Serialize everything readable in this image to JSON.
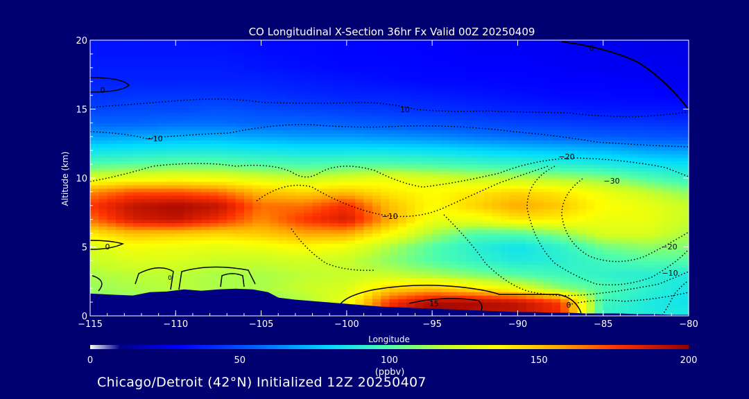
{
  "chart_data": {
    "type": "heatmap",
    "title": "CO Longitudinal X-Section 36hr  Fx Valid 00Z 20250409",
    "xlabel": "Longitude",
    "ylabel": "Altitude (km)",
    "xlim": [
      -115,
      -80
    ],
    "ylim": [
      0,
      20
    ],
    "x_ticks": [
      -115,
      -110,
      -105,
      -100,
      -95,
      -90,
      -85,
      -80
    ],
    "x_tick_labels": [
      "−115",
      "−110",
      "−105",
      "−100",
      "−95",
      "−90",
      "−85",
      "−80"
    ],
    "y_ticks": [
      0,
      5,
      10,
      15,
      20
    ],
    "x": [
      -115,
      -112.5,
      -110,
      -107.5,
      -105,
      -102.5,
      -100,
      -97.5,
      -95,
      -92.5,
      -90,
      -87.5,
      -85,
      -82.5,
      -80
    ],
    "y": [
      0,
      1,
      2,
      3,
      4,
      5,
      6,
      7,
      8,
      9,
      10,
      11,
      12,
      13,
      14,
      15,
      16,
      17,
      18,
      19,
      20
    ],
    "values": [
      [
        110,
        110,
        112,
        110,
        110,
        120,
        130,
        185,
        200,
        190,
        190,
        180,
        90,
        85,
        85
      ],
      [
        110,
        110,
        112,
        110,
        110,
        115,
        130,
        175,
        195,
        195,
        190,
        175,
        95,
        85,
        80
      ],
      [
        112,
        115,
        118,
        115,
        115,
        120,
        125,
        145,
        150,
        140,
        130,
        110,
        100,
        90,
        82
      ],
      [
        115,
        118,
        118,
        115,
        115,
        118,
        120,
        120,
        115,
        108,
        100,
        95,
        90,
        88,
        85
      ],
      [
        120,
        125,
        125,
        120,
        120,
        122,
        120,
        110,
        100,
        92,
        85,
        88,
        95,
        100,
        100
      ],
      [
        125,
        132,
        130,
        128,
        130,
        135,
        130,
        115,
        100,
        88,
        80,
        90,
        105,
        110,
        108
      ],
      [
        140,
        150,
        148,
        145,
        148,
        155,
        155,
        135,
        115,
        100,
        100,
        110,
        125,
        125,
        115
      ],
      [
        165,
        185,
        190,
        178,
        160,
        175,
        185,
        155,
        130,
        130,
        140,
        138,
        130,
        130,
        120
      ],
      [
        175,
        190,
        195,
        190,
        165,
        165,
        178,
        150,
        135,
        145,
        155,
        148,
        135,
        130,
        120
      ],
      [
        160,
        170,
        170,
        165,
        150,
        145,
        150,
        140,
        135,
        140,
        145,
        140,
        130,
        120,
        110
      ],
      [
        125,
        130,
        132,
        130,
        125,
        120,
        125,
        130,
        125,
        120,
        118,
        115,
        110,
        100,
        92
      ],
      [
        100,
        102,
        104,
        104,
        100,
        98,
        100,
        100,
        98,
        95,
        92,
        88,
        85,
        80,
        78
      ],
      [
        80,
        82,
        84,
        84,
        82,
        80,
        80,
        80,
        78,
        75,
        72,
        70,
        68,
        64,
        62
      ],
      [
        62,
        64,
        66,
        66,
        64,
        62,
        62,
        60,
        58,
        55,
        52,
        50,
        48,
        46,
        45
      ],
      [
        50,
        50,
        52,
        52,
        50,
        50,
        48,
        46,
        44,
        42,
        40,
        38,
        36,
        36,
        34
      ],
      [
        40,
        42,
        42,
        44,
        42,
        40,
        38,
        36,
        34,
        32,
        30,
        28,
        26,
        26,
        25
      ],
      [
        34,
        36,
        36,
        36,
        34,
        32,
        30,
        30,
        28,
        26,
        24,
        22,
        22,
        21,
        20
      ],
      [
        30,
        30,
        30,
        30,
        30,
        28,
        26,
        24,
        22,
        22,
        21,
        20,
        20,
        19,
        18
      ],
      [
        28,
        28,
        28,
        28,
        26,
        24,
        22,
        22,
        21,
        20,
        20,
        19,
        18,
        18,
        17
      ],
      [
        26,
        26,
        26,
        26,
        24,
        22,
        21,
        21,
        20,
        19,
        19,
        18,
        18,
        17,
        16
      ],
      [
        25,
        25,
        25,
        24,
        22,
        22,
        21,
        20,
        20,
        19,
        18,
        18,
        17,
        16,
        16
      ]
    ],
    "terrain": {
      "lon": [
        -115,
        -113.5,
        -112.5,
        -111.5,
        -110.5,
        -109.5,
        -108.5,
        -107.5,
        -106.5,
        -105.5,
        -104.6,
        -104,
        -103,
        -102,
        -101,
        -100,
        -99,
        -98,
        -97,
        -96,
        -95,
        -94,
        -93,
        -92,
        -91,
        -90,
        -89,
        -88,
        -87,
        -86,
        -85,
        -84,
        -83,
        -82,
        -81,
        -80
      ],
      "alt": [
        1.6,
        1.5,
        1.45,
        1.7,
        1.75,
        1.9,
        1.8,
        1.9,
        1.95,
        1.9,
        1.7,
        1.3,
        1.15,
        1.05,
        0.95,
        0.85,
        0.75,
        0.65,
        0.6,
        0.55,
        0.5,
        0.45,
        0.4,
        0.35,
        0.3,
        0.25,
        0.25,
        0.2,
        0.2,
        0.15,
        0.15,
        0.15,
        0.1,
        0.1,
        0.05,
        0.05
      ]
    },
    "contour_labels": [
      "0",
      "0",
      "0",
      "10",
      "−10",
      "−10",
      "−20",
      "−30",
      "−20",
      "−10",
      "15",
      "0",
      "0"
    ],
    "colorbar": {
      "min": 0,
      "max": 200,
      "ticks": [
        0,
        50,
        100,
        150,
        200
      ],
      "unit_label": "(ppbv)"
    }
  },
  "footer_text": "Chicago/Detroit (42°N) Initialized 12Z 20250407"
}
